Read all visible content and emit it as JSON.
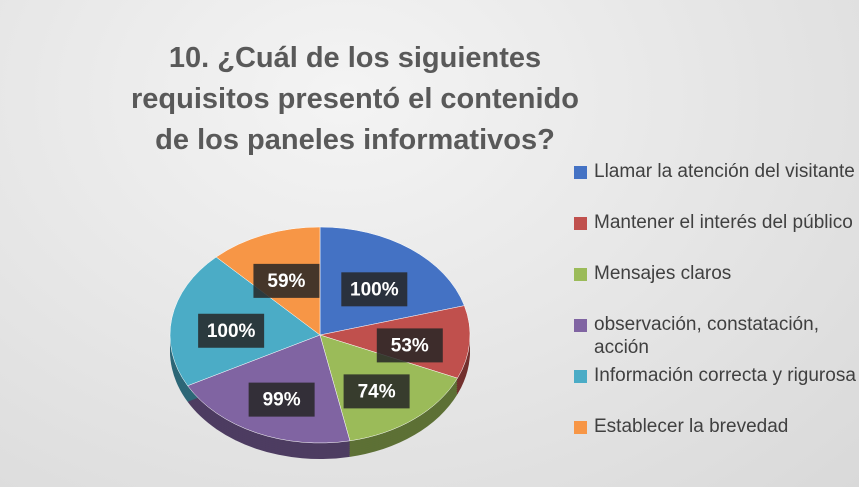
{
  "chart_data": {
    "type": "pie",
    "title": "10. ¿Cuál de los siguientes requisitos presentó el contenido de los paneles informativos?",
    "categories": [
      "Llamar la atención del visitante",
      "Mantener el interés del público",
      "Mensajes claros",
      "observación, constatación, acción",
      "Información correcta y rigurosa",
      "Establecer la brevedad"
    ],
    "values": [
      100,
      53,
      74,
      99,
      100,
      59
    ],
    "value_labels": [
      "100%",
      "53%",
      "74%",
      "99%",
      "100%",
      "59%"
    ],
    "colors": [
      "#4472c4",
      "#c0504d",
      "#9bbb59",
      "#8064a2",
      "#4bacc6",
      "#f79646"
    ],
    "legend": "right"
  }
}
